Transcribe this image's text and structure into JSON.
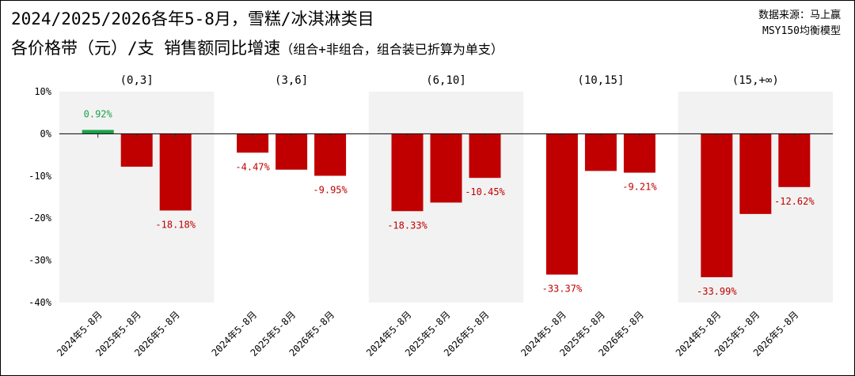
{
  "title": {
    "line1": "2024/2025/2026各年5-8月，雪糕/冰淇淋类目",
    "line2_main": "各价格带（元）/支 销售额同比增速",
    "line2_note": "（组合+非组合，组合装已折算为单支）"
  },
  "source": {
    "line1": "数据来源：马上赢",
    "line2": "MSY150均衡模型"
  },
  "colors": {
    "positive": "#1aa34a",
    "negative": "#c00000",
    "band": "#f2f2f2",
    "zero_line": "#000000",
    "grid": "#e6e6e6"
  },
  "chart_data": {
    "type": "bar",
    "title": "2024/2025/2026各年5-8月，雪糕/冰淇淋类目 各价格带（元）/支 销售额同比增速",
    "ylabel": "",
    "xlabel": "",
    "ylim": [
      -40,
      10
    ],
    "yticks": [
      10,
      0,
      -10,
      -20,
      -30,
      -40
    ],
    "ytick_labels": [
      "10%",
      "0%",
      "-10%",
      "-20%",
      "-30%",
      "-40%"
    ],
    "grid": false,
    "categories": [
      "2024年5-8月",
      "2025年5-8月",
      "2026年5-8月"
    ],
    "groups": [
      {
        "label": "(0,3]",
        "values": [
          0.92,
          -7.8,
          -18.18
        ],
        "labels": [
          "0.92%",
          "",
          "-18.18%"
        ]
      },
      {
        "label": "(3,6]",
        "values": [
          -4.47,
          -8.5,
          -9.95
        ],
        "labels": [
          "-4.47%",
          "",
          "-9.95%"
        ]
      },
      {
        "label": "(6,10]",
        "values": [
          -18.33,
          -16.3,
          -10.45
        ],
        "labels": [
          "-18.33%",
          "",
          "-10.45%"
        ]
      },
      {
        "label": "(10,15]",
        "values": [
          -33.37,
          -8.8,
          -9.21
        ],
        "labels": [
          "-33.37%",
          "",
          "-9.21%"
        ]
      },
      {
        "label": "(15,+∞)",
        "values": [
          -33.99,
          -19.0,
          -12.62
        ],
        "labels": [
          "-33.99%",
          "",
          "-12.62%"
        ]
      }
    ]
  }
}
